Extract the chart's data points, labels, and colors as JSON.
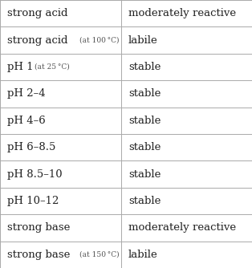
{
  "rows": [
    {
      "col1_main": "strong acid",
      "col1_sup": "",
      "col2": "moderately reactive"
    },
    {
      "col1_main": "strong acid",
      "col1_sup": "(at 100 °C)",
      "col2": "labile"
    },
    {
      "col1_main": "pH 1",
      "col1_sup": "(at 25 °C)",
      "col2": "stable"
    },
    {
      "col1_main": "pH 2–4",
      "col1_sup": "",
      "col2": "stable"
    },
    {
      "col1_main": "pH 4–6",
      "col1_sup": "",
      "col2": "stable"
    },
    {
      "col1_main": "pH 6–8.5",
      "col1_sup": "",
      "col2": "stable"
    },
    {
      "col1_main": "pH 8.5–10",
      "col1_sup": "",
      "col2": "stable"
    },
    {
      "col1_main": "pH 10–12",
      "col1_sup": "",
      "col2": "stable"
    },
    {
      "col1_main": "strong base",
      "col1_sup": "",
      "col2": "moderately reactive"
    },
    {
      "col1_main": "strong base",
      "col1_sup": "(at 150 °C)",
      "col2": "labile"
    }
  ],
  "col_split": 0.48,
  "background_color": "#ffffff",
  "border_color": "#aaaaaa",
  "text_color": "#222222",
  "small_text_color": "#555555",
  "main_font_size": 9.5,
  "small_font_size": 6.5,
  "col2_font_size": 9.5,
  "sup_offsets": [
    0,
    0,
    0,
    0,
    0,
    0,
    0,
    0,
    0,
    0
  ]
}
